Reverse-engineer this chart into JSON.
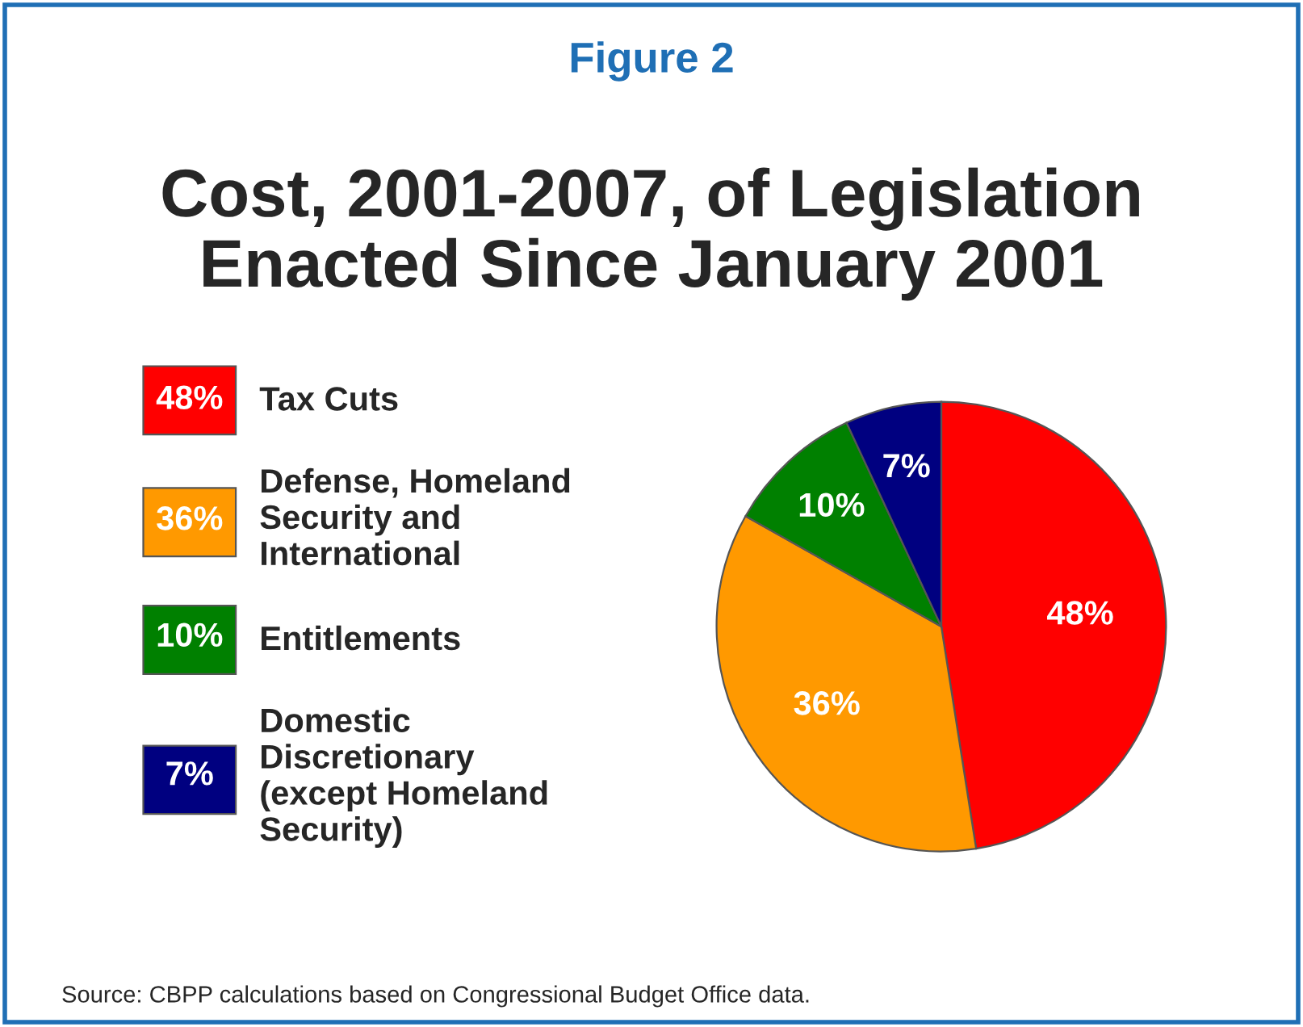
{
  "chart_data": {
    "type": "pie",
    "subtitle": "Figure 2",
    "title": "Cost, 2001-2007, of Legislation\nEnacted Since January 2001",
    "categories": [
      "Tax Cuts",
      "Defense, Homeland\nSecurity and\nInternational",
      "Entitlements",
      "Domestic\nDiscretionary\n(except Homeland\nSecurity)"
    ],
    "values": [
      48,
      36,
      10,
      7
    ],
    "colors": [
      "#ff0000",
      "#ff9900",
      "#008000",
      "#000080"
    ],
    "value_labels": [
      "48%",
      "36%",
      "10%",
      "7%"
    ],
    "legend": "left",
    "annotations": [
      "Source: CBPP calculations based on Congressional Budget Office data."
    ]
  }
}
